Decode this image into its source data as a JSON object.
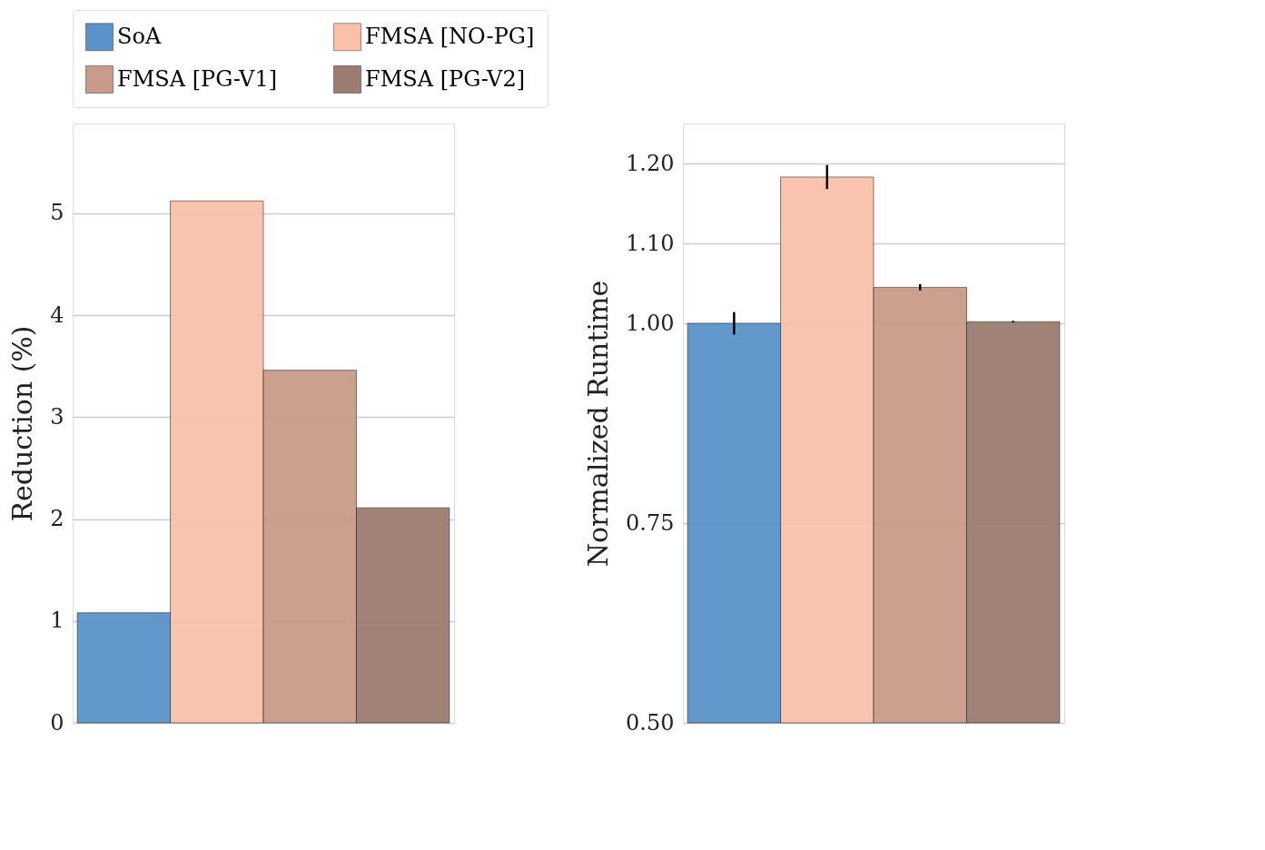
{
  "chart_data": [
    {
      "type": "bar",
      "categories": [
        null
      ],
      "ylabel": "Reduction (%)",
      "ylim": [
        0,
        5.88
      ],
      "yticks": [
        0,
        1,
        2,
        3,
        4,
        5
      ],
      "grid": "y",
      "legend": "top",
      "tick_labels": "y",
      "series": [
        {
          "name": "SoA",
          "color": "#5a93c9",
          "values": [
            1.08
          ]
        },
        {
          "name": "FMSA [NO-PG]",
          "color": "#f9c1aa",
          "values": [
            5.12
          ]
        },
        {
          "name": "FMSA [PG-V1]",
          "color": "#c99b8a",
          "values": [
            3.46
          ]
        },
        {
          "name": "FMSA [PG-V2]",
          "color": "#9b7c6f",
          "values": [
            2.11
          ]
        }
      ]
    },
    {
      "type": "bar",
      "categories": [
        null
      ],
      "ylabel": "Normalized Runtime",
      "ylim": [
        0.5,
        1.25
      ],
      "yticks": [
        {
          "value": 0.5,
          "label": "0.50"
        },
        {
          "value": 0.75,
          "label": "0.75"
        },
        {
          "value": 1.0,
          "label": "1.00"
        },
        {
          "value": 1.1,
          "label": "1.10"
        },
        {
          "value": 1.2,
          "label": "1.20"
        }
      ],
      "grid": "y",
      "tick_labels": "y",
      "series": [
        {
          "color": "#5a93c9",
          "values": [
            1.0
          ],
          "errors": [
            0.014
          ]
        },
        {
          "color": "#f9c1aa",
          "values": [
            1.183
          ],
          "errors": [
            0.015
          ]
        },
        {
          "color": "#c99b8a",
          "values": [
            1.045
          ],
          "errors": [
            0.004
          ]
        },
        {
          "color": "#9b7c6f",
          "values": [
            1.002
          ],
          "errors": [
            0.001
          ]
        }
      ]
    }
  ]
}
